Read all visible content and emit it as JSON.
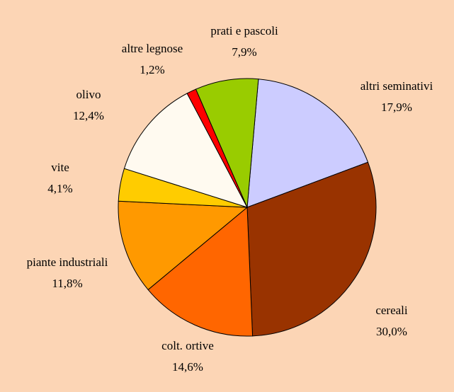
{
  "chart_data": {
    "type": "pie",
    "categories": [
      "altri seminativi",
      "cereali",
      "colt. ortive",
      "piante industriali",
      "vite",
      "olivo",
      "altre legnose",
      "prati e pascoli"
    ],
    "values": [
      17.9,
      30.0,
      14.6,
      11.8,
      4.1,
      12.4,
      1.2,
      7.9
    ],
    "value_labels": [
      "17,9%",
      "30,0%",
      "14,6%",
      "11,8%",
      "4,1%",
      "12,4%",
      "1,2%",
      "7,9%"
    ],
    "colors": [
      "#ccccff",
      "#993300",
      "#ff6600",
      "#ff9900",
      "#ffcc00",
      "#fffaf0",
      "#ff0000",
      "#99cc00"
    ]
  }
}
